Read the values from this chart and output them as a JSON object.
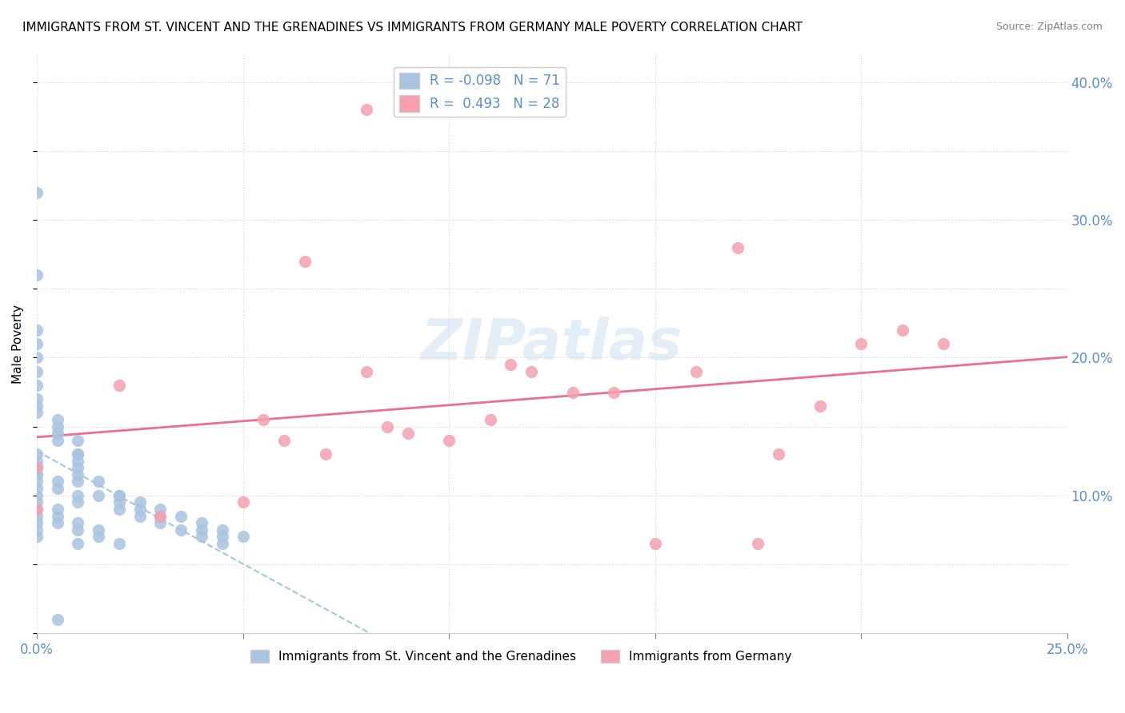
{
  "title": "IMMIGRANTS FROM ST. VINCENT AND THE GRENADINES VS IMMIGRANTS FROM GERMANY MALE POVERTY CORRELATION CHART",
  "source": "Source: ZipAtlas.com",
  "xlabel": "",
  "ylabel": "Male Poverty",
  "xlim": [
    0,
    0.25
  ],
  "ylim": [
    0,
    0.42
  ],
  "yticks": [
    0.1,
    0.2,
    0.3,
    0.4
  ],
  "ytick_labels": [
    "10.0%",
    "20.0%",
    "30.0%",
    "40.0%"
  ],
  "R_blue": -0.098,
  "N_blue": 71,
  "R_pink": 0.493,
  "N_pink": 28,
  "blue_color": "#a8c4e0",
  "pink_color": "#f4a0b0",
  "blue_line_color": "#7ab0d4",
  "pink_line_color": "#e87090",
  "watermark": "ZIPatlas",
  "blue_scatter_x": [
    0.0,
    0.0,
    0.0,
    0.0,
    0.0,
    0.0,
    0.0,
    0.0,
    0.0,
    0.0,
    0.005,
    0.005,
    0.005,
    0.005,
    0.01,
    0.01,
    0.01,
    0.01,
    0.01,
    0.01,
    0.01,
    0.015,
    0.015,
    0.02,
    0.02,
    0.02,
    0.025,
    0.025,
    0.03,
    0.03,
    0.035,
    0.04,
    0.04,
    0.045,
    0.045,
    0.05,
    0.0,
    0.0,
    0.0,
    0.0,
    0.0,
    0.0,
    0.0,
    0.005,
    0.005,
    0.005,
    0.01,
    0.01,
    0.015,
    0.015,
    0.02,
    0.0,
    0.0,
    0.0,
    0.005,
    0.005,
    0.01,
    0.01,
    0.02,
    0.025,
    0.03,
    0.035,
    0.04,
    0.045,
    0.005,
    0.0,
    0.0,
    0.0,
    0.0,
    0.0,
    0.01
  ],
  "blue_scatter_y": [
    0.32,
    0.26,
    0.22,
    0.21,
    0.2,
    0.19,
    0.18,
    0.17,
    0.165,
    0.16,
    0.155,
    0.15,
    0.145,
    0.14,
    0.14,
    0.13,
    0.13,
    0.125,
    0.12,
    0.115,
    0.11,
    0.11,
    0.1,
    0.1,
    0.1,
    0.095,
    0.095,
    0.09,
    0.09,
    0.085,
    0.085,
    0.08,
    0.075,
    0.075,
    0.07,
    0.07,
    0.125,
    0.12,
    0.115,
    0.11,
    0.105,
    0.1,
    0.095,
    0.09,
    0.085,
    0.08,
    0.08,
    0.075,
    0.075,
    0.07,
    0.065,
    0.13,
    0.12,
    0.115,
    0.11,
    0.105,
    0.1,
    0.095,
    0.09,
    0.085,
    0.08,
    0.075,
    0.07,
    0.065,
    0.01,
    0.09,
    0.085,
    0.08,
    0.075,
    0.07,
    0.065
  ],
  "pink_scatter_x": [
    0.0,
    0.0,
    0.02,
    0.03,
    0.05,
    0.055,
    0.06,
    0.065,
    0.07,
    0.08,
    0.085,
    0.09,
    0.1,
    0.11,
    0.115,
    0.12,
    0.13,
    0.14,
    0.15,
    0.16,
    0.17,
    0.175,
    0.18,
    0.19,
    0.2,
    0.21,
    0.22,
    0.08
  ],
  "pink_scatter_y": [
    0.12,
    0.09,
    0.18,
    0.085,
    0.095,
    0.155,
    0.14,
    0.27,
    0.13,
    0.19,
    0.15,
    0.145,
    0.14,
    0.155,
    0.195,
    0.19,
    0.175,
    0.175,
    0.065,
    0.19,
    0.28,
    0.065,
    0.13,
    0.165,
    0.21,
    0.22,
    0.21,
    0.38
  ],
  "legend_blue_label": "Immigrants from St. Vincent and the Grenadines",
  "legend_pink_label": "Immigrants from Germany"
}
